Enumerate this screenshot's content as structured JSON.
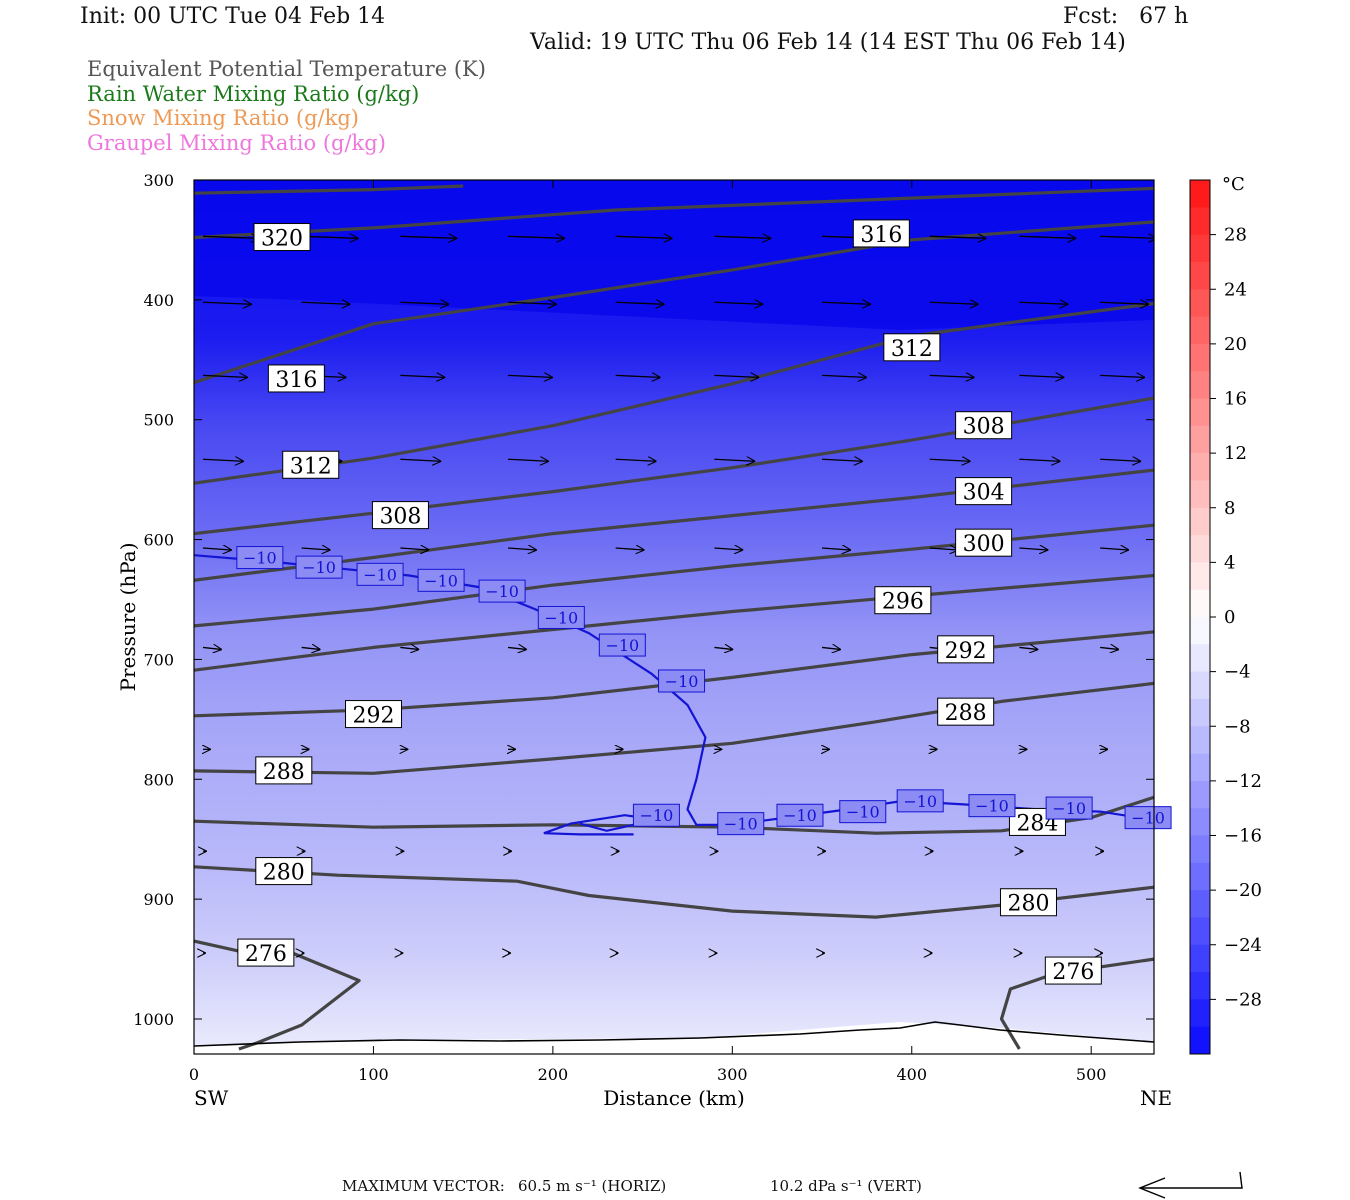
{
  "header": {
    "init": "Init: 00 UTC Tue 04 Feb 14",
    "fcst": "Fcst:   67 h",
    "valid": "Valid: 19 UTC Thu 06 Feb 14 (14 EST Thu 06 Feb 14)"
  },
  "legend": [
    {
      "label": "Equivalent Potential Temperature (K)",
      "color": "#555555"
    },
    {
      "label": "Rain Water Mixing Ratio (g/kg)",
      "color": "#1a7a1a"
    },
    {
      "label": "Snow Mixing Ratio (g/kg)",
      "color": "#ee9955"
    },
    {
      "label": "Graupel Mixing Ratio (g/kg)",
      "color": "#ee77dd"
    }
  ],
  "footer": {
    "max_vector_label": "MAXIMUM VECTOR:",
    "horiz": "60.5 m s⁻¹ (HORIZ)",
    "vert": "10.2 dPa s⁻¹ (VERT)"
  },
  "chart_data": {
    "type": "cross-section",
    "xlabel": "Distance (km)",
    "ylabel": "Pressure (hPa)",
    "x_ticks": [
      0,
      100,
      200,
      300,
      400,
      500
    ],
    "x_end_labels": {
      "left": "SW",
      "right": "NE"
    },
    "xlim": [
      0,
      535
    ],
    "y_ticks": [
      300,
      400,
      500,
      600,
      700,
      800,
      900,
      1000
    ],
    "ylim": [
      1030,
      300
    ],
    "colorbar": {
      "unit": "°C",
      "ticks": [
        28,
        24,
        20,
        16,
        12,
        8,
        4,
        0,
        -4,
        -8,
        -12,
        -16,
        -20,
        -24,
        -28
      ],
      "range": [
        -32,
        32
      ]
    },
    "theta_e_contours": [
      {
        "value": 276,
        "label_pos": [
          [
            25,
            945
          ],
          [
            475,
            960
          ]
        ],
        "points": [
          [
            0,
            935
          ],
          [
            30,
            945
          ],
          [
            55,
            945
          ],
          [
            92,
            968
          ],
          [
            60,
            1005
          ],
          [
            35,
            1020
          ],
          [
            25,
            1025
          ]
        ]
      },
      {
        "value": 276,
        "label_pos": [],
        "points": [
          [
            460,
            1025
          ],
          [
            450,
            1000
          ],
          [
            455,
            975
          ],
          [
            480,
            962
          ],
          [
            535,
            950
          ]
        ]
      },
      {
        "value": 280,
        "label_pos": [
          [
            35,
            877
          ],
          [
            450,
            903
          ]
        ],
        "points": [
          [
            0,
            873
          ],
          [
            80,
            880
          ],
          [
            180,
            885
          ],
          [
            220,
            897
          ],
          [
            300,
            910
          ],
          [
            380,
            915
          ],
          [
            450,
            905
          ],
          [
            535,
            890
          ]
        ]
      },
      {
        "value": 284,
        "label_pos": [
          [
            455,
            836
          ]
        ],
        "points": [
          [
            0,
            835
          ],
          [
            100,
            840
          ],
          [
            200,
            838
          ],
          [
            300,
            840
          ],
          [
            380,
            845
          ],
          [
            450,
            843
          ],
          [
            500,
            832
          ],
          [
            535,
            815
          ]
        ]
      },
      {
        "value": 288,
        "label_pos": [
          [
            35,
            793
          ],
          [
            415,
            744
          ]
        ],
        "points": [
          [
            0,
            793
          ],
          [
            100,
            795
          ],
          [
            200,
            783
          ],
          [
            300,
            770
          ],
          [
            380,
            752
          ],
          [
            450,
            735
          ],
          [
            535,
            720
          ]
        ]
      },
      {
        "value": 292,
        "label_pos": [
          [
            85,
            746
          ],
          [
            415,
            692
          ]
        ],
        "points": [
          [
            0,
            747
          ],
          [
            100,
            742
          ],
          [
            200,
            732
          ],
          [
            300,
            715
          ],
          [
            400,
            696
          ],
          [
            535,
            677
          ]
        ]
      },
      {
        "value": 296,
        "label_pos": [
          [
            380,
            651
          ]
        ],
        "points": [
          [
            0,
            709
          ],
          [
            100,
            690
          ],
          [
            200,
            675
          ],
          [
            300,
            660
          ],
          [
            400,
            647
          ],
          [
            535,
            630
          ]
        ]
      },
      {
        "value": 300,
        "label_pos": [
          [
            425,
            603
          ]
        ],
        "points": [
          [
            0,
            672
          ],
          [
            100,
            658
          ],
          [
            200,
            638
          ],
          [
            300,
            622
          ],
          [
            400,
            608
          ],
          [
            535,
            588
          ]
        ]
      },
      {
        "value": 304,
        "label_pos": [
          [
            425,
            560
          ]
        ],
        "points": [
          [
            0,
            634
          ],
          [
            100,
            615
          ],
          [
            200,
            595
          ],
          [
            300,
            580
          ],
          [
            400,
            565
          ],
          [
            535,
            542
          ]
        ]
      },
      {
        "value": 308,
        "label_pos": [
          [
            100,
            580
          ],
          [
            425,
            505
          ]
        ],
        "points": [
          [
            0,
            595
          ],
          [
            100,
            578
          ],
          [
            200,
            560
          ],
          [
            300,
            540
          ],
          [
            400,
            517
          ],
          [
            535,
            482
          ]
        ]
      },
      {
        "value": 312,
        "label_pos": [
          [
            50,
            538
          ],
          [
            385,
            440
          ]
        ],
        "points": [
          [
            0,
            553
          ],
          [
            100,
            532
          ],
          [
            200,
            505
          ],
          [
            300,
            470
          ],
          [
            400,
            430
          ],
          [
            535,
            403
          ]
        ]
      },
      {
        "value": 316,
        "label_pos": [
          [
            42,
            466
          ],
          [
            368,
            345
          ]
        ],
        "points": [
          [
            0,
            469
          ],
          [
            100,
            420
          ],
          [
            200,
            398
          ],
          [
            300,
            375
          ],
          [
            400,
            350
          ],
          [
            535,
            335
          ]
        ]
      },
      {
        "value": 320,
        "label_pos": [
          [
            34,
            348
          ]
        ],
        "points": [
          [
            0,
            348
          ],
          [
            100,
            340
          ],
          [
            235,
            325
          ],
          [
            535,
            307
          ]
        ]
      },
      {
        "value": 324,
        "label_pos": [],
        "points": [
          [
            0,
            311
          ],
          [
            100,
            308
          ],
          [
            150,
            305
          ]
        ]
      }
    ],
    "temp_minus10_contour": {
      "value": -10,
      "label_pos": [
        [
          25,
          615
        ],
        [
          58,
          623
        ],
        [
          92,
          629
        ],
        [
          126,
          634
        ],
        [
          160,
          643
        ],
        [
          193,
          665
        ],
        [
          227,
          688
        ],
        [
          260,
          718
        ],
        [
          246,
          830
        ],
        [
          293,
          837
        ],
        [
          326,
          830
        ],
        [
          361,
          827
        ],
        [
          393,
          818
        ],
        [
          433,
          822
        ],
        [
          476,
          824
        ],
        [
          520,
          832
        ]
      ],
      "points": [
        [
          0,
          613
        ],
        [
          40,
          618
        ],
        [
          80,
          624
        ],
        [
          120,
          630
        ],
        [
          160,
          640
        ],
        [
          190,
          658
        ],
        [
          220,
          678
        ],
        [
          255,
          712
        ],
        [
          275,
          738
        ],
        [
          285,
          765
        ],
        [
          280,
          800
        ],
        [
          275,
          825
        ],
        [
          280,
          838
        ],
        [
          300,
          838
        ],
        [
          330,
          832
        ],
        [
          360,
          826
        ],
        [
          395,
          818
        ],
        [
          430,
          821
        ],
        [
          470,
          825
        ],
        [
          505,
          827
        ],
        [
          535,
          834
        ]
      ],
      "branch": [
        [
          215,
          837
        ],
        [
          230,
          843
        ],
        [
          245,
          838
        ],
        [
          255,
          833
        ],
        [
          240,
          830
        ],
        [
          210,
          837
        ],
        [
          195,
          845
        ],
        [
          215,
          846
        ],
        [
          245,
          846
        ]
      ]
    },
    "wind_vectors": {
      "rows": [
        {
          "p": 347,
          "x": [
            5,
            60,
            115,
            175,
            235,
            290,
            350,
            410,
            460,
            505
          ],
          "len": 56
        },
        {
          "p": 402,
          "x": [
            5,
            60,
            115,
            175,
            235,
            290,
            350,
            410,
            460,
            505
          ],
          "len": 48
        },
        {
          "p": 463,
          "x": [
            5,
            60,
            115,
            175,
            235,
            290,
            350,
            410,
            460,
            505
          ],
          "len": 44
        },
        {
          "p": 533,
          "x": [
            5,
            60,
            115,
            175,
            235,
            290,
            350,
            410,
            460,
            505
          ],
          "len": 40
        },
        {
          "p": 607,
          "x": [
            5,
            60,
            115,
            175,
            235,
            290,
            350,
            410,
            460,
            505
          ],
          "len": 28
        },
        {
          "p": 690,
          "x": [
            5,
            60,
            115,
            175,
            235,
            290,
            350,
            410,
            460,
            505
          ],
          "len": 18
        },
        {
          "p": 775,
          "x": [
            5,
            60,
            115,
            175,
            235,
            290,
            350,
            410,
            460,
            505
          ],
          "len": 7
        },
        {
          "p": 860,
          "x": [
            5,
            60,
            115,
            175,
            235,
            290,
            350,
            410,
            460,
            505
          ],
          "len": 3
        },
        {
          "p": 945,
          "x": [
            5,
            60,
            115,
            175,
            235,
            290,
            350,
            410,
            460,
            505
          ],
          "len": 2
        }
      ]
    }
  }
}
